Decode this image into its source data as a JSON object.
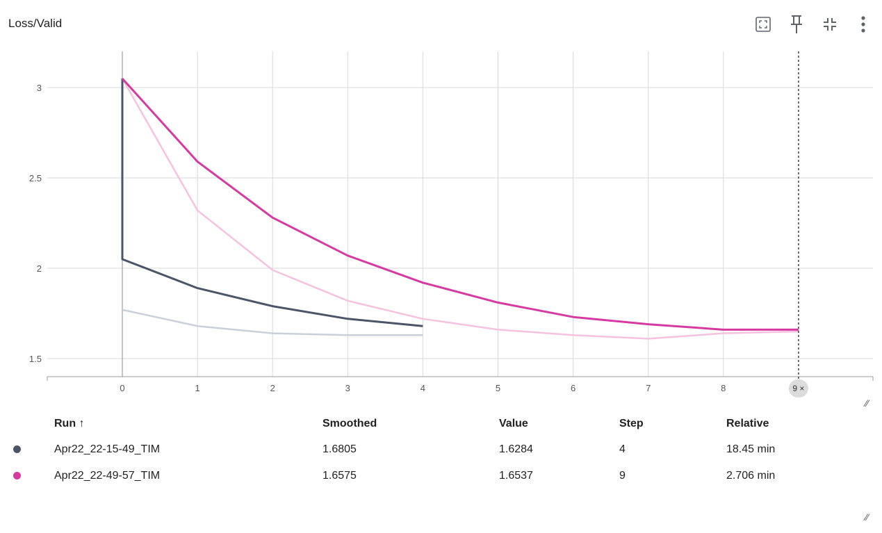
{
  "card": {
    "title": "Loss/Valid",
    "tools": [
      {
        "icon": "fit-domain-icon"
      },
      {
        "icon": "pin-icon"
      },
      {
        "icon": "collapse-icon"
      },
      {
        "icon": "more-vert-icon"
      }
    ]
  },
  "chart_data": {
    "type": "line",
    "title": "Loss/Valid",
    "xlabel": "",
    "ylabel": "",
    "xlim": [
      -1,
      10
    ],
    "ylim": [
      1.4,
      3.2
    ],
    "x_ticks": [
      "0",
      "1",
      "2",
      "3",
      "4",
      "5",
      "6",
      "7",
      "8"
    ],
    "y_ticks": [
      "1.5",
      "2",
      "2.5",
      "3"
    ],
    "grid": true,
    "hover_step_label": "9 ×",
    "series": [
      {
        "name": "Apr22_22-15-49_TIM",
        "color": "#4a5568",
        "raw_color": "#c9d0d9",
        "x": [
          0,
          1,
          2,
          3,
          4
        ],
        "raw": [
          1.77,
          1.68,
          1.64,
          1.63,
          1.63
        ],
        "smoothed": [
          2.05,
          1.89,
          1.79,
          1.72,
          1.68
        ],
        "initial_smoothed": 3.05
      },
      {
        "name": "Apr22_22-49-57_TIM",
        "color": "#d63aa0",
        "raw_color": "#f5c2e0",
        "x": [
          0,
          1,
          2,
          3,
          4,
          5,
          6,
          7,
          8,
          9
        ],
        "raw": [
          3.05,
          2.32,
          1.99,
          1.82,
          1.72,
          1.66,
          1.63,
          1.61,
          1.64,
          1.65
        ],
        "smoothed": [
          3.05,
          2.59,
          2.28,
          2.07,
          1.92,
          1.81,
          1.73,
          1.69,
          1.66,
          1.66
        ]
      }
    ]
  },
  "table": {
    "headers": [
      "Run ↑",
      "Smoothed",
      "Value",
      "Step",
      "Relative"
    ],
    "rows": [
      {
        "color": "#4a5568",
        "run": "Apr22_22-15-49_TIM",
        "smoothed": "1.6805",
        "value": "1.6284",
        "step": "4",
        "relative": "18.45 min"
      },
      {
        "color": "#d63aa0",
        "run": "Apr22_22-49-57_TIM",
        "smoothed": "1.6575",
        "value": "1.6537",
        "step": "9",
        "relative": "2.706 min"
      }
    ]
  }
}
